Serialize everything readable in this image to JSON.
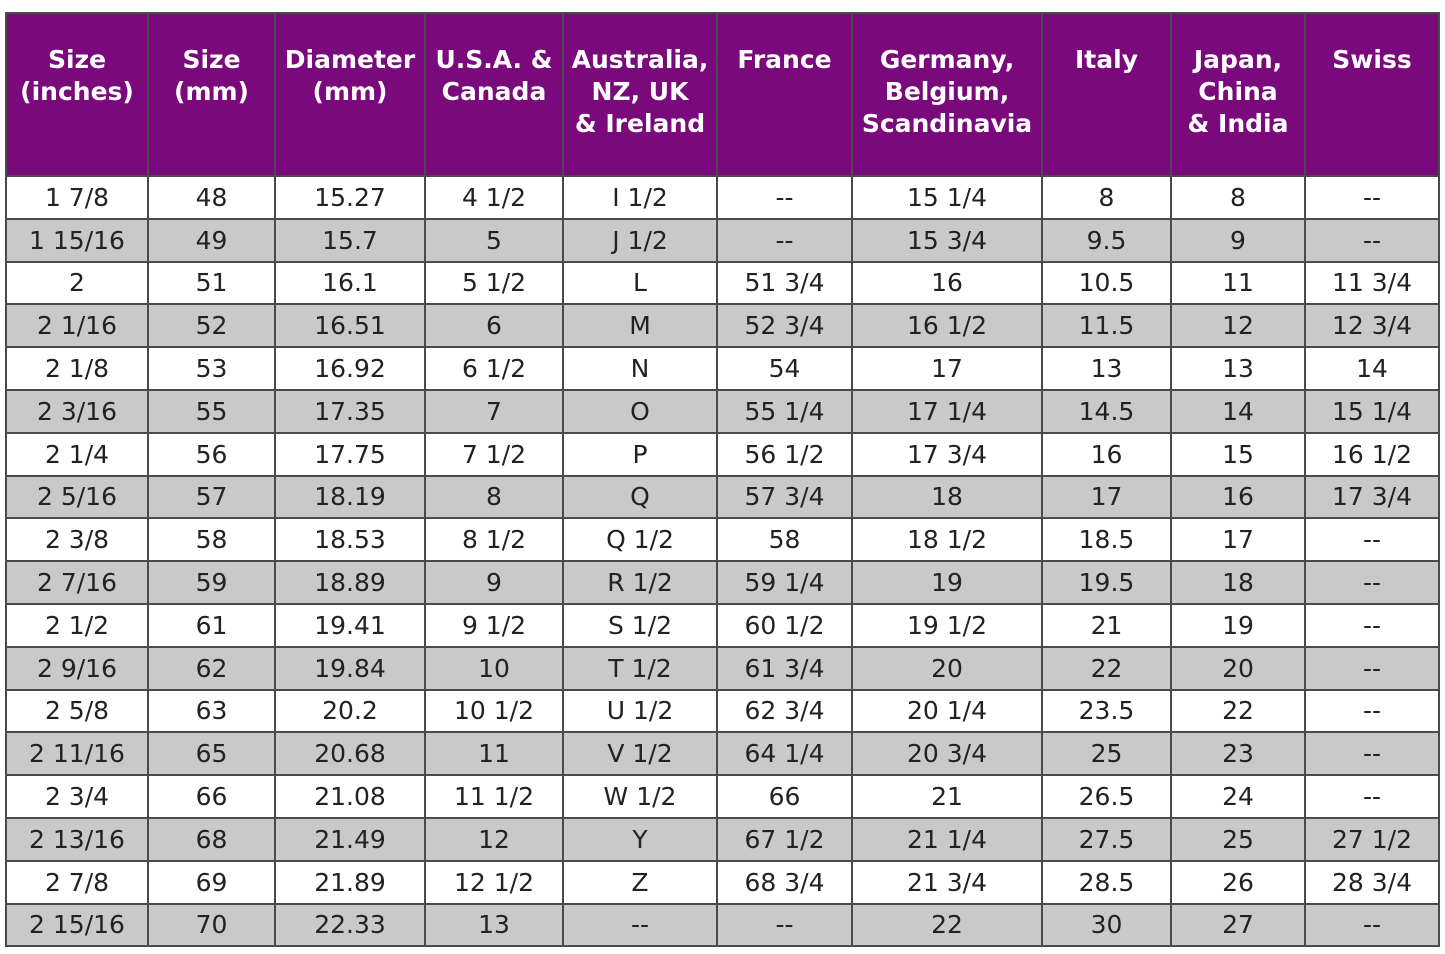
{
  "table": {
    "headers": [
      "Size\n(inches)",
      "Size\n(mm)",
      "Diameter\n(mm)",
      "U.S.A. &\nCanada",
      "Australia,\nNZ, UK\n& Ireland",
      "France",
      "Germany,\nBelgium,\nScandinavia",
      "Italy",
      "Japan,\nChina\n& India",
      "Swiss"
    ],
    "rows": [
      [
        "1 7/8",
        "48",
        "15.27",
        "4 1/2",
        "I 1/2",
        "--",
        "15 1/4",
        "8",
        "8",
        "--"
      ],
      [
        "1 15/16",
        "49",
        "15.7",
        "5",
        "J 1/2",
        "--",
        "15 3/4",
        "9.5",
        "9",
        "--"
      ],
      [
        "2",
        "51",
        "16.1",
        "5 1/2",
        "L",
        "51 3/4",
        "16",
        "10.5",
        "11",
        "11 3/4"
      ],
      [
        "2 1/16",
        "52",
        "16.51",
        "6",
        "M",
        "52 3/4",
        "16 1/2",
        "11.5",
        "12",
        "12 3/4"
      ],
      [
        "2 1/8",
        "53",
        "16.92",
        "6 1/2",
        "N",
        "54",
        "17",
        "13",
        "13",
        "14"
      ],
      [
        "2 3/16",
        "55",
        "17.35",
        "7",
        "O",
        "55 1/4",
        "17 1/4",
        "14.5",
        "14",
        "15 1/4"
      ],
      [
        "2 1/4",
        "56",
        "17.75",
        "7 1/2",
        "P",
        "56 1/2",
        "17 3/4",
        "16",
        "15",
        "16 1/2"
      ],
      [
        "2 5/16",
        "57",
        "18.19",
        "8",
        "Q",
        "57 3/4",
        "18",
        "17",
        "16",
        "17 3/4"
      ],
      [
        "2 3/8",
        "58",
        "18.53",
        "8 1/2",
        "Q 1/2",
        "58",
        "18 1/2",
        "18.5",
        "17",
        "--"
      ],
      [
        "2 7/16",
        "59",
        "18.89",
        "9",
        "R 1/2",
        "59 1/4",
        "19",
        "19.5",
        "18",
        "--"
      ],
      [
        "2 1/2",
        "61",
        "19.41",
        "9 1/2",
        "S 1/2",
        "60 1/2",
        "19 1/2",
        "21",
        "19",
        "--"
      ],
      [
        "2 9/16",
        "62",
        "19.84",
        "10",
        "T 1/2",
        "61 3/4",
        "20",
        "22",
        "20",
        "--"
      ],
      [
        "2 5/8",
        "63",
        "20.2",
        "10 1/2",
        "U 1/2",
        "62 3/4",
        "20 1/4",
        "23.5",
        "22",
        "--"
      ],
      [
        "2 11/16",
        "65",
        "20.68",
        "11",
        "V 1/2",
        "64 1/4",
        "20 3/4",
        "25",
        "23",
        "--"
      ],
      [
        "2 3/4",
        "66",
        "21.08",
        "11 1/2",
        "W 1/2",
        "66",
        "21",
        "26.5",
        "24",
        "--"
      ],
      [
        "2 13/16",
        "68",
        "21.49",
        "12",
        "Y",
        "67 1/2",
        "21 1/4",
        "27.5",
        "25",
        "27 1/2"
      ],
      [
        "2 7/8",
        "69",
        "21.89",
        "12 1/2",
        "Z",
        "68 3/4",
        "21 3/4",
        "28.5",
        "26",
        "28 3/4"
      ],
      [
        "2 15/16",
        "70",
        "22.33",
        "13",
        "--",
        "--",
        "22",
        "30",
        "27",
        "--"
      ]
    ]
  }
}
